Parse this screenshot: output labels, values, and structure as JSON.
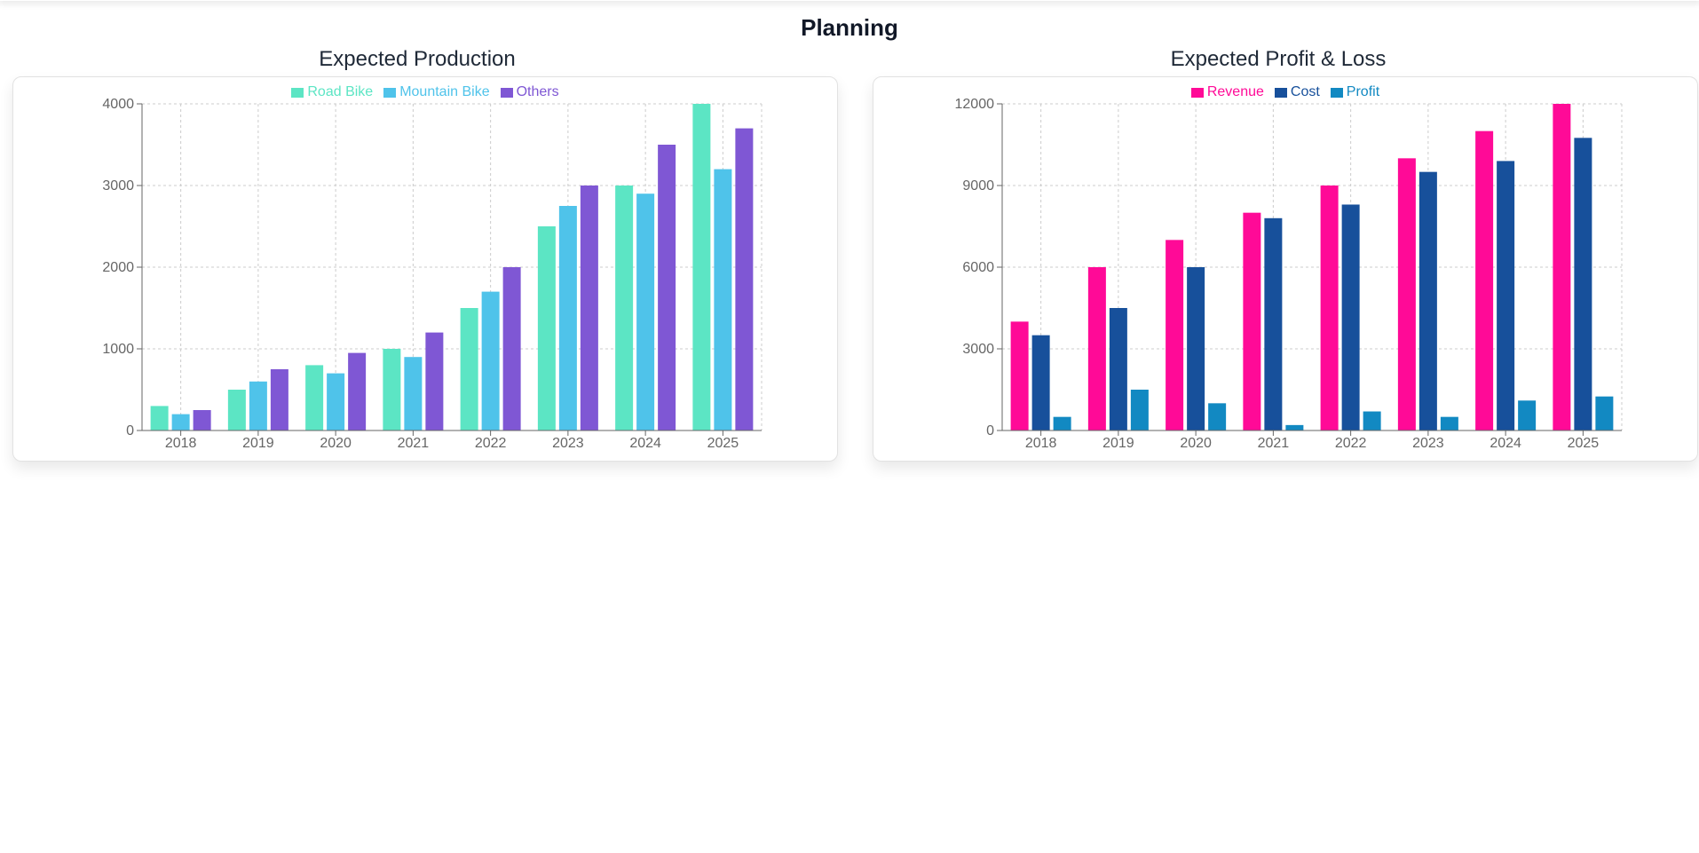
{
  "page": {
    "title": "Planning"
  },
  "chart_data": [
    {
      "type": "bar",
      "title": "Expected Production",
      "categories": [
        "2018",
        "2019",
        "2020",
        "2021",
        "2022",
        "2023",
        "2024",
        "2025"
      ],
      "series": [
        {
          "name": "Road Bike",
          "color": "#5ce5c4",
          "values": [
            300,
            500,
            800,
            1000,
            1500,
            2500,
            3000,
            4000
          ]
        },
        {
          "name": "Mountain Bike",
          "color": "#4fc3ea",
          "values": [
            200,
            600,
            700,
            900,
            1700,
            2750,
            2900,
            3200
          ]
        },
        {
          "name": "Others",
          "color": "#7f57d4",
          "values": [
            250,
            750,
            950,
            1200,
            2000,
            3000,
            3500,
            3700
          ]
        }
      ],
      "ylim": [
        0,
        4000
      ],
      "yticks": [
        "0",
        "1000",
        "2000",
        "3000",
        "4000"
      ],
      "grid": true,
      "legend": "top-center"
    },
    {
      "type": "bar",
      "title": "Expected Profit & Loss",
      "categories": [
        "2018",
        "2019",
        "2020",
        "2021",
        "2022",
        "2023",
        "2024",
        "2025"
      ],
      "series": [
        {
          "name": "Revenue",
          "color": "#ff0a97",
          "values": [
            4000,
            6000,
            7000,
            8000,
            9000,
            10000,
            11000,
            12000
          ]
        },
        {
          "name": "Cost",
          "color": "#17509b",
          "values": [
            3500,
            4500,
            6000,
            7800,
            8300,
            9500,
            9900,
            10750
          ]
        },
        {
          "name": "Profit",
          "color": "#1289c2",
          "values": [
            500,
            1500,
            1000,
            200,
            700,
            500,
            1100,
            1250
          ]
        }
      ],
      "ylim": [
        0,
        12000
      ],
      "yticks": [
        "0",
        "3000",
        "6000",
        "9000",
        "12000"
      ],
      "grid": true,
      "legend": "top-center"
    }
  ]
}
